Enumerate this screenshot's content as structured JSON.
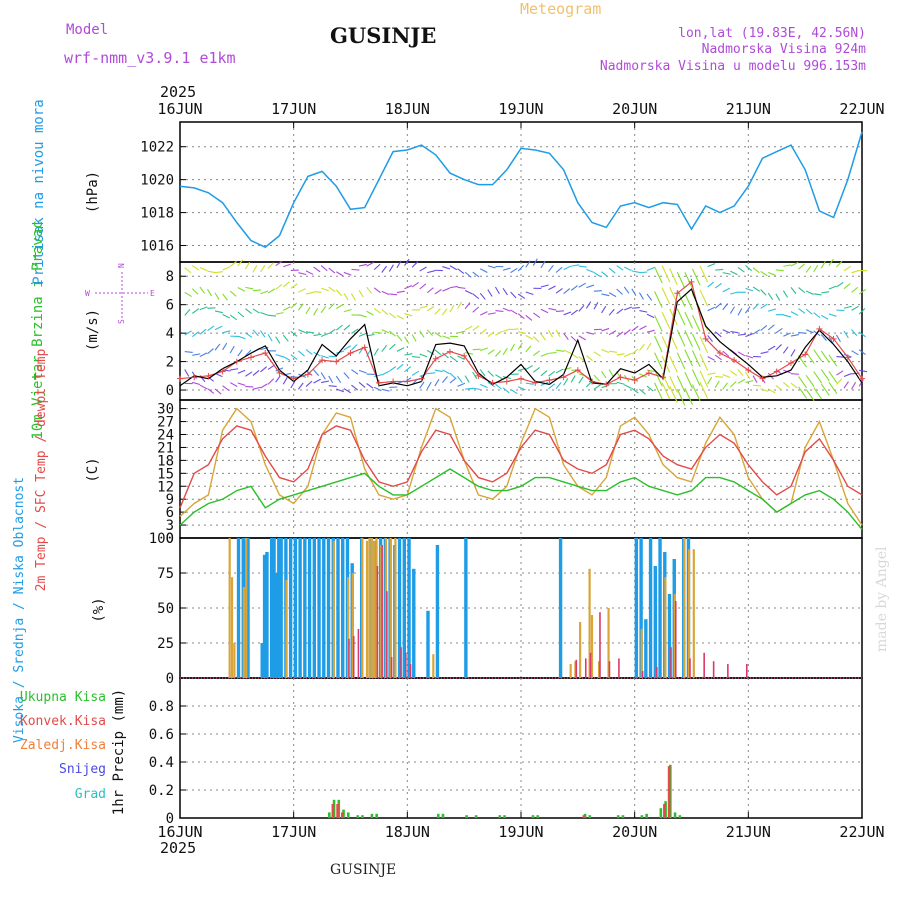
{
  "header": {
    "model_label": "Model",
    "model_name": "wrf-nmm_v3.9.1 e1km",
    "station": "GUSINJE",
    "product": "Meteogram",
    "lonlat": "lon,lat (19.83E, 42.56N)",
    "elevation": "Nadmorska Visina 924m",
    "model_elevation": "Nadmorska Visina u modelu 996.153m",
    "footer_station": "GUSINJE",
    "credit": "made by Angel"
  },
  "time_axis": {
    "year": "2025",
    "tick_labels": [
      "16JUN",
      "17JUN",
      "18JUN",
      "19JUN",
      "20JUN",
      "21JUN",
      "22JUN"
    ]
  },
  "colors": {
    "pressure": "#1f9ce6",
    "wind_speed": "#000000",
    "gust": "#e34a4a",
    "temp2m": "#e34a4a",
    "sfc_temp": "#d9a53a",
    "dewpt": "#2bbf2b",
    "high_cloud": "#1f9ce6",
    "mid_cloud": "#d9a53a",
    "low_cloud": "#d93a6a",
    "total_precip": "#2bbf2b",
    "conv_precip": "#e34a4a",
    "frozen_precip": "#f07f3a",
    "snow": "#4a4ae3",
    "hail": "#2bbfbf",
    "header_purple": "#b04ad9",
    "meteogram_title": "#f0c070"
  },
  "chart_data": [
    {
      "type": "line",
      "title": "Pritisak na nivou mora",
      "ylabel": "(hPa)",
      "ylim": [
        1015,
        1023.5
      ],
      "yticks": [
        "1016",
        "1018",
        "1020",
        "1022"
      ],
      "grid": true,
      "series": [
        {
          "name": "Pritisak na nivou mora",
          "x": [
            0,
            3,
            6,
            9,
            12,
            15,
            18,
            21,
            24,
            27,
            30,
            33,
            36,
            39,
            42,
            45,
            48,
            51,
            54,
            57,
            60,
            63,
            66,
            69,
            72,
            75,
            78,
            81,
            84,
            87,
            90,
            93,
            96,
            99,
            102,
            105,
            108,
            111,
            114,
            117,
            120,
            123,
            126,
            129,
            132,
            135,
            138,
            141,
            144
          ],
          "values": [
            1019.6,
            1019.5,
            1019.2,
            1018.6,
            1017.4,
            1016.3,
            1015.9,
            1016.6,
            1018.6,
            1020.2,
            1020.5,
            1019.6,
            1018.2,
            1018.3,
            1020.0,
            1021.7,
            1021.8,
            1022.1,
            1021.5,
            1020.4,
            1020.0,
            1019.7,
            1019.7,
            1020.6,
            1021.9,
            1021.8,
            1021.6,
            1020.6,
            1018.6,
            1017.4,
            1017.1,
            1018.4,
            1018.6,
            1018.3,
            1018.6,
            1018.5,
            1017.0,
            1018.4,
            1018.0,
            1018.4,
            1019.6,
            1021.3,
            1021.7,
            1022.1,
            1020.6,
            1018.1,
            1017.7,
            1020.0,
            1022.9
          ]
        }
      ]
    },
    {
      "type": "line",
      "title": "10m Vjetar Brzina i Pravac",
      "ylabel": "(m/s)",
      "ylim": [
        -0.7,
        9
      ],
      "yticks": [
        "0",
        "2",
        "4",
        "6",
        "8"
      ],
      "compass": [
        "N",
        "W",
        "E",
        "S"
      ],
      "grid": true,
      "series": [
        {
          "name": "speed",
          "x": [
            0,
            3,
            6,
            9,
            12,
            15,
            18,
            21,
            24,
            27,
            30,
            33,
            36,
            39,
            42,
            45,
            48,
            51,
            54,
            57,
            60,
            63,
            66,
            69,
            72,
            75,
            78,
            81,
            84,
            87,
            90,
            93,
            96,
            99,
            102,
            105,
            108,
            111,
            114,
            117,
            120,
            123,
            126,
            129,
            132,
            135,
            138,
            141,
            144
          ],
          "values": [
            0.3,
            1.0,
            0.8,
            1.5,
            2.0,
            2.6,
            3.1,
            1.4,
            0.6,
            1.4,
            3.2,
            2.4,
            3.6,
            4.6,
            0.3,
            0.5,
            0.3,
            0.6,
            3.2,
            3.3,
            3.1,
            1.2,
            0.4,
            0.9,
            1.8,
            0.6,
            0.4,
            1.1,
            3.5,
            0.5,
            0.4,
            1.5,
            1.2,
            1.8,
            0.8,
            6.2,
            7.1,
            4.5,
            3.4,
            2.6,
            1.8,
            0.9,
            1.0,
            1.4,
            3.0,
            4.2,
            3.2,
            2.0,
            0.5
          ]
        },
        {
          "name": "gust",
          "x": [
            0,
            3,
            6,
            9,
            12,
            15,
            18,
            21,
            24,
            27,
            30,
            33,
            36,
            39,
            42,
            45,
            48,
            51,
            54,
            57,
            60,
            63,
            66,
            69,
            72,
            75,
            78,
            81,
            84,
            87,
            90,
            93,
            96,
            99,
            102,
            105,
            108,
            111,
            114,
            117,
            120,
            123,
            126,
            129,
            132,
            135,
            138,
            141,
            144
          ],
          "values": [
            0.8,
            0.9,
            1.0,
            1.3,
            2.0,
            2.3,
            2.6,
            1.2,
            0.8,
            1.1,
            2.1,
            2.0,
            2.6,
            3.0,
            0.5,
            0.6,
            0.6,
            0.8,
            2.2,
            2.7,
            2.4,
            1.0,
            0.5,
            0.6,
            0.8,
            0.5,
            0.7,
            0.9,
            1.4,
            0.6,
            0.4,
            0.9,
            0.7,
            1.2,
            0.9,
            6.8,
            7.6,
            3.6,
            2.6,
            2.1,
            1.4,
            0.8,
            1.3,
            1.9,
            2.5,
            4.3,
            3.6,
            2.3,
            0.8
          ]
        }
      ]
    },
    {
      "type": "line",
      "title": "2m Temp / SFC Temp / dewpt Temp",
      "ylabel": "(C)",
      "ylim": [
        0,
        32
      ],
      "yticks": [
        "0",
        "3",
        "6",
        "9",
        "12",
        "15",
        "18",
        "21",
        "24",
        "27",
        "30"
      ],
      "grid": true,
      "series": [
        {
          "name": "2m Temp",
          "x": [
            0,
            3,
            6,
            9,
            12,
            15,
            18,
            21,
            24,
            27,
            30,
            33,
            36,
            39,
            42,
            45,
            48,
            51,
            54,
            57,
            60,
            63,
            66,
            69,
            72,
            75,
            78,
            81,
            84,
            87,
            90,
            93,
            96,
            99,
            102,
            105,
            108,
            111,
            114,
            117,
            120,
            123,
            126,
            129,
            132,
            135,
            138,
            141,
            144
          ],
          "values": [
            7,
            15,
            17,
            23,
            26,
            25,
            19,
            14,
            13,
            16,
            24,
            26,
            25,
            18,
            13,
            12,
            13,
            20,
            25,
            24,
            18,
            14,
            13,
            15,
            21,
            25,
            24,
            18,
            16,
            15,
            17,
            24,
            25,
            23,
            19,
            17,
            16,
            21,
            24,
            22,
            17,
            13,
            10,
            12,
            20,
            23,
            18,
            12,
            10
          ]
        },
        {
          "name": "SFC Temp",
          "x": [
            0,
            3,
            6,
            9,
            12,
            15,
            18,
            21,
            24,
            27,
            30,
            33,
            36,
            39,
            42,
            45,
            48,
            51,
            54,
            57,
            60,
            63,
            66,
            69,
            72,
            75,
            78,
            81,
            84,
            87,
            90,
            93,
            96,
            99,
            102,
            105,
            108,
            111,
            114,
            117,
            120,
            123,
            126,
            129,
            132,
            135,
            138,
            141,
            144
          ],
          "values": [
            5,
            8,
            10,
            25,
            30,
            27,
            17,
            10,
            8,
            12,
            24,
            29,
            28,
            16,
            10,
            9,
            10,
            21,
            30,
            28,
            18,
            10,
            9,
            12,
            22,
            30,
            28,
            17,
            12,
            10,
            14,
            26,
            28,
            24,
            17,
            14,
            13,
            22,
            28,
            24,
            14,
            9,
            6,
            8,
            21,
            27,
            18,
            8,
            3
          ]
        },
        {
          "name": "dewpt Temp",
          "x": [
            0,
            3,
            6,
            9,
            12,
            15,
            18,
            21,
            24,
            27,
            30,
            33,
            36,
            39,
            42,
            45,
            48,
            51,
            54,
            57,
            60,
            63,
            66,
            69,
            72,
            75,
            78,
            81,
            84,
            87,
            90,
            93,
            96,
            99,
            102,
            105,
            108,
            111,
            114,
            117,
            120,
            123,
            126,
            129,
            132,
            135,
            138,
            141,
            144
          ],
          "values": [
            3,
            6,
            8,
            9,
            11,
            12,
            7,
            9,
            10,
            11,
            12,
            13,
            14,
            15,
            12,
            10,
            10,
            12,
            14,
            16,
            14,
            12,
            11,
            11,
            12,
            14,
            14,
            13,
            12,
            11,
            11,
            13,
            14,
            12,
            11,
            10,
            11,
            14,
            14,
            13,
            11,
            9,
            6,
            8,
            10,
            11,
            9,
            6,
            2
          ]
        }
      ]
    },
    {
      "type": "bar",
      "title": "Visoka / Srednja / Niska Oblacnost",
      "ylabel": "(%)",
      "ylim": [
        0,
        100
      ],
      "yticks": [
        "0",
        "25",
        "50",
        "75",
        "100"
      ],
      "grid": true,
      "series": [
        {
          "name": "Visoka Oblacnost",
          "x": [
            12,
            13,
            13.5,
            14,
            17,
            17.5,
            18,
            19,
            19.5,
            20,
            20.5,
            21,
            22,
            23,
            24,
            25,
            26,
            27,
            28,
            29,
            30,
            31,
            32,
            33,
            34,
            35,
            36,
            38,
            40,
            41,
            42,
            43,
            44,
            45,
            46,
            47,
            48,
            49,
            52,
            54,
            60,
            80,
            81,
            96,
            97,
            98,
            99,
            100,
            101,
            102,
            103,
            104,
            106,
            107
          ],
          "values": [
            100,
            100,
            98,
            100,
            25,
            88,
            90,
            100,
            100,
            75,
            100,
            100,
            100,
            100,
            100,
            100,
            100,
            100,
            100,
            100,
            100,
            100,
            100,
            100,
            100,
            100,
            82,
            100,
            100,
            98,
            100,
            100,
            100,
            95,
            100,
            100,
            100,
            78,
            48,
            95,
            100,
            100,
            0,
            100,
            100,
            42,
            100,
            80,
            100,
            90,
            60,
            85,
            100,
            100
          ]
        },
        {
          "name": "Srednja Oblacnost",
          "x": [
            10,
            10.5,
            11,
            13,
            13.5,
            22,
            32,
            35,
            36,
            38,
            39,
            39.5,
            40,
            40.5,
            41,
            42,
            43,
            44,
            45,
            53,
            82,
            83,
            84,
            86,
            86.5,
            88,
            90,
            97,
            102,
            104,
            106,
            107,
            108
          ],
          "values": [
            100,
            72,
            25,
            65,
            100,
            70,
            98,
            72,
            75,
            100,
            98,
            100,
            100,
            98,
            100,
            95,
            100,
            100,
            100,
            17,
            10,
            12,
            40,
            78,
            45,
            12,
            50,
            35,
            72,
            60,
            100,
            92,
            92
          ]
        },
        {
          "name": "Niska Oblacnost",
          "x": [
            35,
            36,
            37,
            41,
            42,
            43,
            44,
            46,
            47,
            48,
            83,
            85,
            86,
            88,
            90,
            92,
            97,
            100,
            103,
            104,
            107,
            110,
            112,
            115,
            119
          ],
          "values": [
            28,
            30,
            35,
            80,
            95,
            62,
            15,
            22,
            18,
            10,
            13,
            14,
            18,
            47,
            12,
            14,
            5,
            8,
            22,
            55,
            14,
            18,
            12,
            10,
            10
          ]
        }
      ]
    },
    {
      "type": "bar",
      "title": "1hr Precip",
      "ylabel": "1hr Precip (mm)",
      "ylim": [
        0,
        1.0
      ],
      "yticks": [
        "0",
        "0.2",
        "0.4",
        "0.6",
        "0.8"
      ],
      "grid": true,
      "legend": [
        "Ukupna Kisa",
        "Konvek.Kisa",
        "Zaledj.Kisa",
        "Snijeg",
        "Grad"
      ],
      "series": [
        {
          "name": "Ukupna Kisa",
          "x": [
            31,
            32,
            33,
            34,
            35,
            37,
            38,
            40,
            41,
            54,
            55,
            60,
            62,
            67,
            68,
            74,
            75,
            85,
            86,
            92,
            93,
            97,
            98,
            101,
            102,
            103,
            104,
            105
          ],
          "values": [
            0.04,
            0.13,
            0.13,
            0.06,
            0.04,
            0.02,
            0.02,
            0.03,
            0.03,
            0.03,
            0.03,
            0.02,
            0.02,
            0.02,
            0.02,
            0.02,
            0.02,
            0.03,
            0.02,
            0.02,
            0.02,
            0.02,
            0.03,
            0.07,
            0.12,
            0.38,
            0.04,
            0.02
          ]
        },
        {
          "name": "Konvek.Kisa",
          "x": [
            32,
            33,
            34,
            85,
            102,
            103
          ],
          "values": [
            0.1,
            0.1,
            0.04,
            0.02,
            0.1,
            0.37
          ]
        }
      ]
    }
  ]
}
